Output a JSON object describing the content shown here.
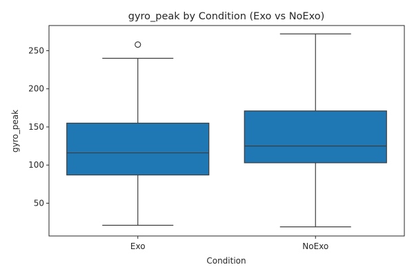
{
  "chart_data": {
    "type": "box",
    "title": "gyro_peak by Condition (Exo vs NoExo)",
    "xlabel": "Condition",
    "ylabel": "gyro_peak",
    "ylim": [
      7,
      283
    ],
    "yticks": [
      50,
      100,
      150,
      200,
      250
    ],
    "grid": false,
    "box_color": "#1f77b4",
    "line_color": "#3d3d3d",
    "categories": [
      "Exo",
      "NoExo"
    ],
    "boxes": [
      {
        "category": "Exo",
        "whisker_low": 21,
        "q1": 87,
        "median": 116,
        "q3": 155,
        "whisker_high": 240,
        "outliers": [
          258
        ]
      },
      {
        "category": "NoExo",
        "whisker_low": 19,
        "q1": 103,
        "median": 125,
        "q3": 171,
        "whisker_high": 272,
        "outliers": []
      }
    ]
  }
}
